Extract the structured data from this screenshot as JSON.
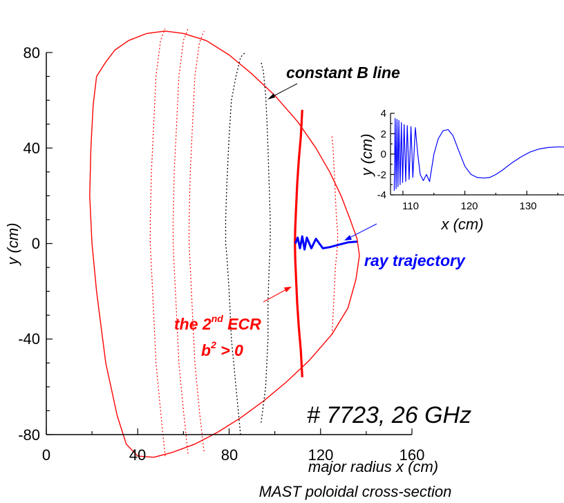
{
  "chart_data": [
    {
      "type": "line",
      "title": "",
      "xlabel": "major radius x (cm)",
      "ylabel": "y (cm)",
      "xlim": [
        0,
        160
      ],
      "ylim": [
        -80,
        80
      ],
      "x_ticks": [
        "0",
        "40",
        "80",
        "120",
        "160"
      ],
      "y_ticks": [
        "80",
        "40",
        "0",
        "-40",
        "-80"
      ],
      "grid": false,
      "caption": "MAST poloidal cross-section",
      "shot_label": "# 7723, 26 GHz",
      "annotations": {
        "constant_b": "constant B line",
        "ray": "ray trajectory",
        "ecr_prefix": "the 2",
        "ecr_sup": "nd",
        "ecr_suffix": " ECR",
        "b2_prefix": "b",
        "b2_sup": "2",
        "b2_suffix": " > 0"
      },
      "colors": {
        "boundary": "#ff0000",
        "resonance": "#ff0000",
        "const_b_red": "#ff0000",
        "const_b_black": "#000000",
        "ray": "#0000ff"
      },
      "series": [
        {
          "key": "boundary",
          "x": [
            22,
            26,
            30,
            36,
            44,
            52,
            60,
            70,
            80,
            90,
            100,
            110,
            118,
            124,
            129,
            133,
            136,
            137,
            135.5,
            132,
            125,
            115,
            105,
            95,
            85,
            75,
            65,
            55,
            47,
            40,
            35,
            31,
            26,
            22,
            20,
            19,
            19.5,
            20.5,
            22
          ],
          "y": [
            70,
            76,
            81,
            85,
            88,
            89,
            88,
            85,
            79,
            71,
            62,
            51,
            40,
            30,
            20,
            10,
            2,
            -5,
            -15,
            -27,
            -38,
            -49,
            -58,
            -66,
            -73,
            -79,
            -84,
            -87.5,
            -89.5,
            -89,
            -84,
            -72,
            -50,
            -20,
            0,
            20,
            40,
            58,
            70
          ]
        },
        {
          "key": "resonance_2nd_ecr",
          "x": [
            112,
            111.4,
            110.5,
            109.8,
            109.3,
            108.9,
            108.8,
            108.9,
            109.3,
            109.8,
            110.5,
            111.4,
            112
          ],
          "y": [
            56,
            45,
            35,
            25,
            15,
            6,
            0,
            -6,
            -15,
            -25,
            -35,
            -45,
            -56
          ]
        },
        {
          "key": "const_b_1",
          "x": [
            52,
            50,
            48,
            47,
            46,
            45.5,
            45.5,
            46,
            47,
            48,
            50,
            52
          ],
          "y": [
            -89,
            -70,
            -50,
            -30,
            -10,
            0,
            10,
            30,
            50,
            70,
            85,
            90
          ]
        },
        {
          "key": "const_b_2",
          "x": [
            62,
            60,
            58,
            57,
            56,
            55.5,
            55.5,
            56,
            57,
            58,
            60,
            62
          ],
          "y": [
            -88,
            -70,
            -50,
            -30,
            -10,
            0,
            10,
            30,
            50,
            70,
            85,
            90
          ]
        },
        {
          "key": "const_b_3",
          "x": [
            69,
            67,
            65,
            64,
            63,
            62.5,
            62.5,
            63,
            64,
            65,
            67,
            69
          ],
          "y": [
            -87,
            -70,
            -50,
            -30,
            -10,
            0,
            10,
            30,
            50,
            70,
            84,
            89
          ]
        },
        {
          "key": "const_b_4",
          "x": [
            85,
            83,
            81,
            80,
            79,
            78.5,
            78.5,
            79,
            80,
            81,
            83,
            85,
            87
          ],
          "y": [
            -80,
            -60,
            -40,
            -20,
            -5,
            0,
            10,
            25,
            45,
            60,
            70,
            78,
            80
          ]
        },
        {
          "key": "const_b_5",
          "x": [
            94,
            96,
            97,
            97,
            97.5,
            98,
            98,
            97.5,
            97,
            96.5,
            96,
            95,
            94
          ],
          "y": [
            -75,
            -60,
            -40,
            -25,
            -10,
            0,
            10,
            25,
            40,
            52,
            62,
            72,
            76
          ]
        },
        {
          "key": "const_b_6",
          "x": [
            125,
            125.5,
            126,
            126.5,
            127,
            127.5,
            127.5,
            127,
            126.5,
            126,
            125.5,
            125
          ],
          "y": [
            -38,
            -30,
            -20,
            -10,
            -5,
            0,
            5,
            10,
            20,
            30,
            40,
            45
          ]
        },
        {
          "key": "ray_main",
          "x": [
            109,
            110,
            111,
            112,
            113,
            114,
            116,
            118,
            121,
            124,
            128,
            132,
            136
          ],
          "y": [
            0,
            2.5,
            -2,
            3,
            -2.5,
            2.5,
            -2,
            2,
            -2,
            -1.5,
            -0.5,
            0.5,
            0.8
          ]
        }
      ]
    },
    {
      "type": "line",
      "title": "",
      "xlabel": "x (cm)",
      "ylabel": "y (cm)",
      "xlim": [
        108,
        136
      ],
      "ylim": [
        -4,
        4
      ],
      "x_ticks": [
        "110",
        "120",
        "130"
      ],
      "y_ticks": [
        "4",
        "2",
        "0",
        "-2",
        "-4"
      ],
      "grid": false,
      "series": [
        {
          "key": "ray_inset",
          "x": [
            108.6,
            108.75,
            108.9,
            109.05,
            109.2,
            109.35,
            109.55,
            109.75,
            109.95,
            110.2,
            110.45,
            110.7,
            111.0,
            111.3,
            111.6,
            112.0,
            112.4,
            112.8,
            113.3,
            113.8,
            114.3,
            115.0,
            115.7,
            116.5,
            117.3,
            118.1,
            118.9,
            120.0,
            121.0,
            122.0,
            123.0,
            124.0,
            125.0,
            126.0,
            127.5,
            129.0,
            130.5,
            132.0,
            133.5,
            135.0,
            136.0
          ],
          "y": [
            -3.6,
            3.5,
            -3.4,
            3.4,
            -3.2,
            3.3,
            -3.0,
            3.1,
            -2.8,
            2.9,
            -2.7,
            2.8,
            -2.5,
            2.7,
            -2.3,
            2.6,
            0.0,
            -2.0,
            -2.6,
            -2.0,
            -2.7,
            0.0,
            1.5,
            2.3,
            2.4,
            1.8,
            0.5,
            -1.2,
            -2.0,
            -2.3,
            -2.35,
            -2.3,
            -2.0,
            -1.6,
            -0.9,
            -0.3,
            0.2,
            0.5,
            0.65,
            0.7,
            0.7
          ]
        }
      ]
    }
  ]
}
